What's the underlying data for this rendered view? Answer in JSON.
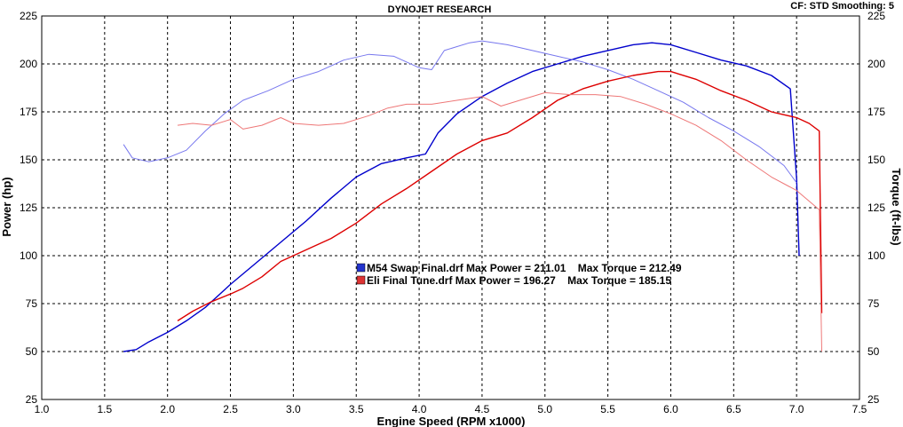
{
  "header": {
    "title": "DYNOJET RESEARCH",
    "settings": "CF: STD  Smoothing: 5"
  },
  "chart_data": {
    "type": "line",
    "xlabel": "Engine Speed (RPM x1000)",
    "ylabel_left": "Power (hp)",
    "ylabel_right": "Torque (ft-lbs)",
    "xlim": [
      1.0,
      7.5
    ],
    "ylim": [
      25,
      225
    ],
    "x_ticks": [
      "1.0",
      "1.5",
      "2.0",
      "2.5",
      "3.0",
      "3.5",
      "4.0",
      "4.5",
      "5.0",
      "5.5",
      "6.0",
      "6.5",
      "7.0",
      "7.5"
    ],
    "y_ticks": [
      "25",
      "50",
      "75",
      "100",
      "125",
      "150",
      "175",
      "200",
      "225"
    ],
    "grid": true,
    "series": [
      {
        "name": "M54 Swap Final.drf",
        "kind": "power",
        "color": "#0000cc",
        "x": [
          1.65,
          1.75,
          1.85,
          2.0,
          2.15,
          2.3,
          2.5,
          2.7,
          2.9,
          3.1,
          3.3,
          3.5,
          3.7,
          3.9,
          4.05,
          4.15,
          4.3,
          4.5,
          4.7,
          4.9,
          5.1,
          5.3,
          5.5,
          5.7,
          5.85,
          6.0,
          6.2,
          6.4,
          6.6,
          6.8,
          6.95,
          7.0,
          7.02
        ],
        "y": [
          50,
          51,
          55,
          60,
          66,
          73,
          85,
          96,
          107,
          118,
          130,
          141,
          148,
          151,
          153,
          164,
          174,
          183,
          190,
          196,
          200,
          204,
          207,
          210,
          211,
          210,
          206,
          202,
          199,
          194,
          187,
          140,
          100
        ]
      },
      {
        "name": "M54 Swap Final.drf",
        "kind": "torque",
        "color": "#7777ee",
        "x": [
          1.65,
          1.72,
          1.85,
          2.0,
          2.15,
          2.3,
          2.45,
          2.6,
          2.8,
          3.0,
          3.2,
          3.4,
          3.6,
          3.8,
          4.0,
          4.1,
          4.2,
          4.4,
          4.5,
          4.7,
          4.9,
          5.1,
          5.3,
          5.5,
          5.7,
          5.9,
          6.1,
          6.3,
          6.5,
          6.7,
          6.9,
          7.0
        ],
        "y": [
          158,
          151,
          149,
          151,
          155,
          165,
          174,
          181,
          186,
          192,
          196,
          202,
          205,
          204,
          198,
          197,
          207,
          211,
          212,
          210,
          207,
          204,
          201,
          197,
          192,
          186,
          180,
          172,
          165,
          157,
          147,
          138
        ]
      },
      {
        "name": "Eli Final Tune.drf",
        "kind": "power",
        "color": "#dd0000",
        "x": [
          2.08,
          2.2,
          2.35,
          2.5,
          2.6,
          2.75,
          2.9,
          3.1,
          3.3,
          3.5,
          3.7,
          3.9,
          4.1,
          4.3,
          4.5,
          4.7,
          4.9,
          5.1,
          5.3,
          5.5,
          5.7,
          5.9,
          6.0,
          6.2,
          6.4,
          6.6,
          6.8,
          7.0,
          7.1,
          7.18,
          7.2
        ],
        "y": [
          66,
          71,
          76,
          80,
          83,
          89,
          97,
          103,
          109,
          117,
          127,
          135,
          144,
          153,
          160,
          164,
          172,
          181,
          187,
          191,
          194,
          196,
          196,
          192,
          186,
          181,
          175,
          172,
          169,
          165,
          70
        ]
      },
      {
        "name": "Eli Final Tune.drf",
        "kind": "torque",
        "color": "#ee7777",
        "x": [
          2.08,
          2.2,
          2.35,
          2.5,
          2.6,
          2.75,
          2.9,
          3.0,
          3.2,
          3.4,
          3.6,
          3.75,
          3.9,
          4.1,
          4.3,
          4.5,
          4.65,
          4.8,
          5.0,
          5.2,
          5.4,
          5.6,
          5.8,
          6.0,
          6.2,
          6.4,
          6.6,
          6.8,
          7.0,
          7.18,
          7.2
        ],
        "y": [
          168,
          169,
          168,
          171,
          166,
          168,
          172,
          169,
          168,
          169,
          173,
          177,
          179,
          179,
          181,
          183,
          178,
          181,
          185,
          184,
          184,
          183,
          179,
          174,
          168,
          160,
          150,
          141,
          134,
          124,
          50
        ]
      }
    ],
    "legend": {
      "placement": "center",
      "entries": [
        {
          "file": "M54 Swap Final.drf",
          "text": "M54 Swap Final.drf Max Power = 211.01    Max Torque = 212.49",
          "color": "#2233cc"
        },
        {
          "file": "Eli Final Tune.drf",
          "text": "Eli Final Tune.drf Max Power = 196.27    Max Torque = 185.15",
          "color": "#dd3333"
        }
      ]
    }
  }
}
